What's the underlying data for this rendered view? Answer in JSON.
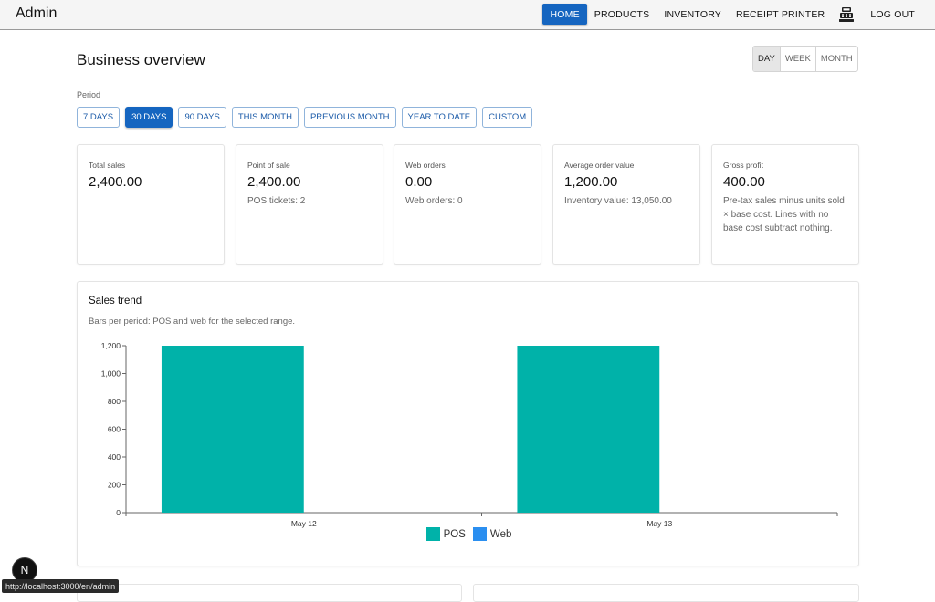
{
  "header": {
    "title": "Admin",
    "nav": [
      {
        "label": "HOME",
        "active": true
      },
      {
        "label": "PRODUCTS",
        "active": false
      },
      {
        "label": "INVENTORY",
        "active": false
      },
      {
        "label": "RECEIPT PRINTER",
        "active": false
      }
    ],
    "printer_icon": "cash-register-icon",
    "logout_label": "LOG OUT",
    "accent": "#1565c0"
  },
  "page": {
    "title": "Business overview",
    "granularity": [
      {
        "label": "DAY",
        "active": true
      },
      {
        "label": "WEEK",
        "active": false
      },
      {
        "label": "MONTH",
        "active": false
      }
    ],
    "period_label": "Period",
    "periods": [
      {
        "label": "7 DAYS",
        "active": false
      },
      {
        "label": "30 DAYS",
        "active": true
      },
      {
        "label": "90 DAYS",
        "active": false
      },
      {
        "label": "THIS MONTH",
        "active": false
      },
      {
        "label": "PREVIOUS MONTH",
        "active": false
      },
      {
        "label": "YEAR TO DATE",
        "active": false
      },
      {
        "label": "CUSTOM",
        "active": false
      }
    ]
  },
  "kpis": [
    {
      "label": "Total sales",
      "value": "2,400.00",
      "sub": ""
    },
    {
      "label": "Point of sale",
      "value": "2,400.00",
      "sub": "POS tickets: 2"
    },
    {
      "label": "Web orders",
      "value": "0.00",
      "sub": "Web orders: 0"
    },
    {
      "label": "Average order value",
      "value": "1,200.00",
      "sub": "Inventory value: 13,050.00"
    },
    {
      "label": "Gross profit",
      "value": "400.00",
      "sub": "Pre-tax sales minus units sold × base cost. Lines with no base cost subtract nothing."
    }
  ],
  "chart_card": {
    "title": "Sales trend",
    "subtitle": "Bars per period: POS and web for the selected range."
  },
  "chart_data": {
    "type": "bar",
    "categories": [
      "May 12",
      "May 13"
    ],
    "series": [
      {
        "name": "POS",
        "values": [
          1200,
          1200
        ],
        "color": "#00b2a9"
      },
      {
        "name": "Web",
        "values": [
          0,
          0
        ],
        "color": "#2b8ff0"
      }
    ],
    "yticks": [
      "0",
      "200",
      "400",
      "600",
      "800",
      "1,000",
      "1,200"
    ],
    "ylim": [
      0,
      1200
    ],
    "legend": "bottom-center"
  },
  "overlay": {
    "dev_badge": "N",
    "status_url": "http://localhost:3000/en/admin"
  }
}
